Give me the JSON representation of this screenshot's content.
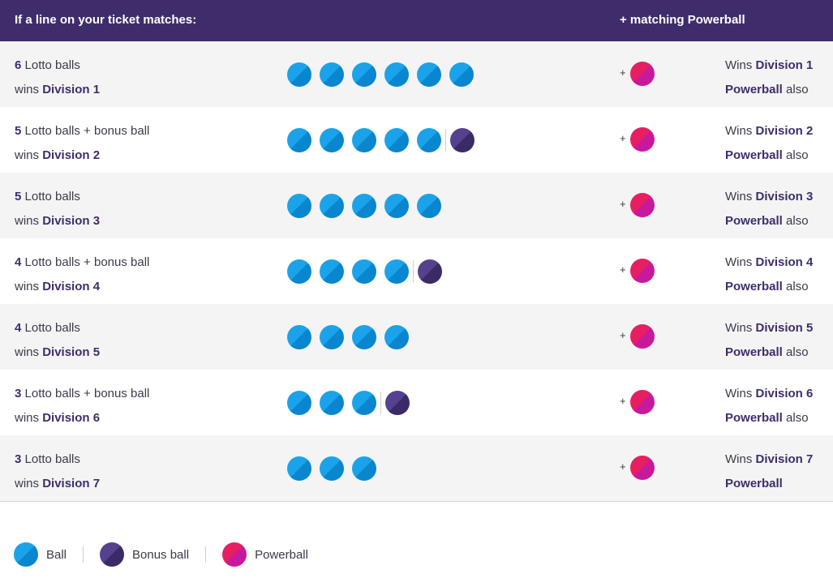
{
  "header": {
    "left": "If a line on your ticket matches:",
    "right": "+ matching Powerball"
  },
  "colors": {
    "header_bg": "#3f2d6b",
    "ball": "#1aa3ea",
    "bonus_ball": "#4a3a80",
    "powerball": "#e0207a",
    "row_alt": "#f4f4f4"
  },
  "rows": [
    {
      "count": "6",
      "count_text": " Lotto balls",
      "wins_prefix": "wins ",
      "division": "Division 1",
      "balls": 6,
      "bonus": false,
      "plus": "+",
      "r_prefix": "Wins ",
      "r_division": "Division 1",
      "r_powerball": "Powerball",
      "r_suffix": " also"
    },
    {
      "count": "5",
      "count_text": " Lotto balls + bonus ball",
      "wins_prefix": "wins ",
      "division": "Division 2",
      "balls": 5,
      "bonus": true,
      "plus": "+",
      "r_prefix": "Wins ",
      "r_division": "Division 2",
      "r_powerball": "Powerball",
      "r_suffix": " also"
    },
    {
      "count": "5",
      "count_text": " Lotto balls",
      "wins_prefix": "wins ",
      "division": "Division 3",
      "balls": 5,
      "bonus": false,
      "plus": "+",
      "r_prefix": "Wins ",
      "r_division": "Division 3",
      "r_powerball": "Powerball",
      "r_suffix": " also"
    },
    {
      "count": "4",
      "count_text": " Lotto balls + bonus ball",
      "wins_prefix": "wins ",
      "division": "Division 4",
      "balls": 4,
      "bonus": true,
      "plus": "+",
      "r_prefix": "Wins ",
      "r_division": "Division 4",
      "r_powerball": "Powerball",
      "r_suffix": " also"
    },
    {
      "count": "4",
      "count_text": " Lotto balls",
      "wins_prefix": "wins ",
      "division": "Division 5",
      "balls": 4,
      "bonus": false,
      "plus": "+",
      "r_prefix": "Wins ",
      "r_division": "Division 5",
      "r_powerball": "Powerball",
      "r_suffix": " also"
    },
    {
      "count": "3",
      "count_text": " Lotto balls + bonus ball",
      "wins_prefix": "wins ",
      "division": "Division 6",
      "balls": 3,
      "bonus": true,
      "plus": "+",
      "r_prefix": "Wins ",
      "r_division": "Division 6",
      "r_powerball": "Powerball",
      "r_suffix": " also"
    },
    {
      "count": "3",
      "count_text": " Lotto balls",
      "wins_prefix": "wins ",
      "division": "Division 7",
      "balls": 3,
      "bonus": false,
      "plus": "+",
      "r_prefix": "Wins ",
      "r_division": "Division 7",
      "r_powerball": "Powerball",
      "r_suffix": ""
    }
  ],
  "legend": {
    "ball": "Ball",
    "bonus_ball": "Bonus ball",
    "powerball": "Powerball"
  }
}
